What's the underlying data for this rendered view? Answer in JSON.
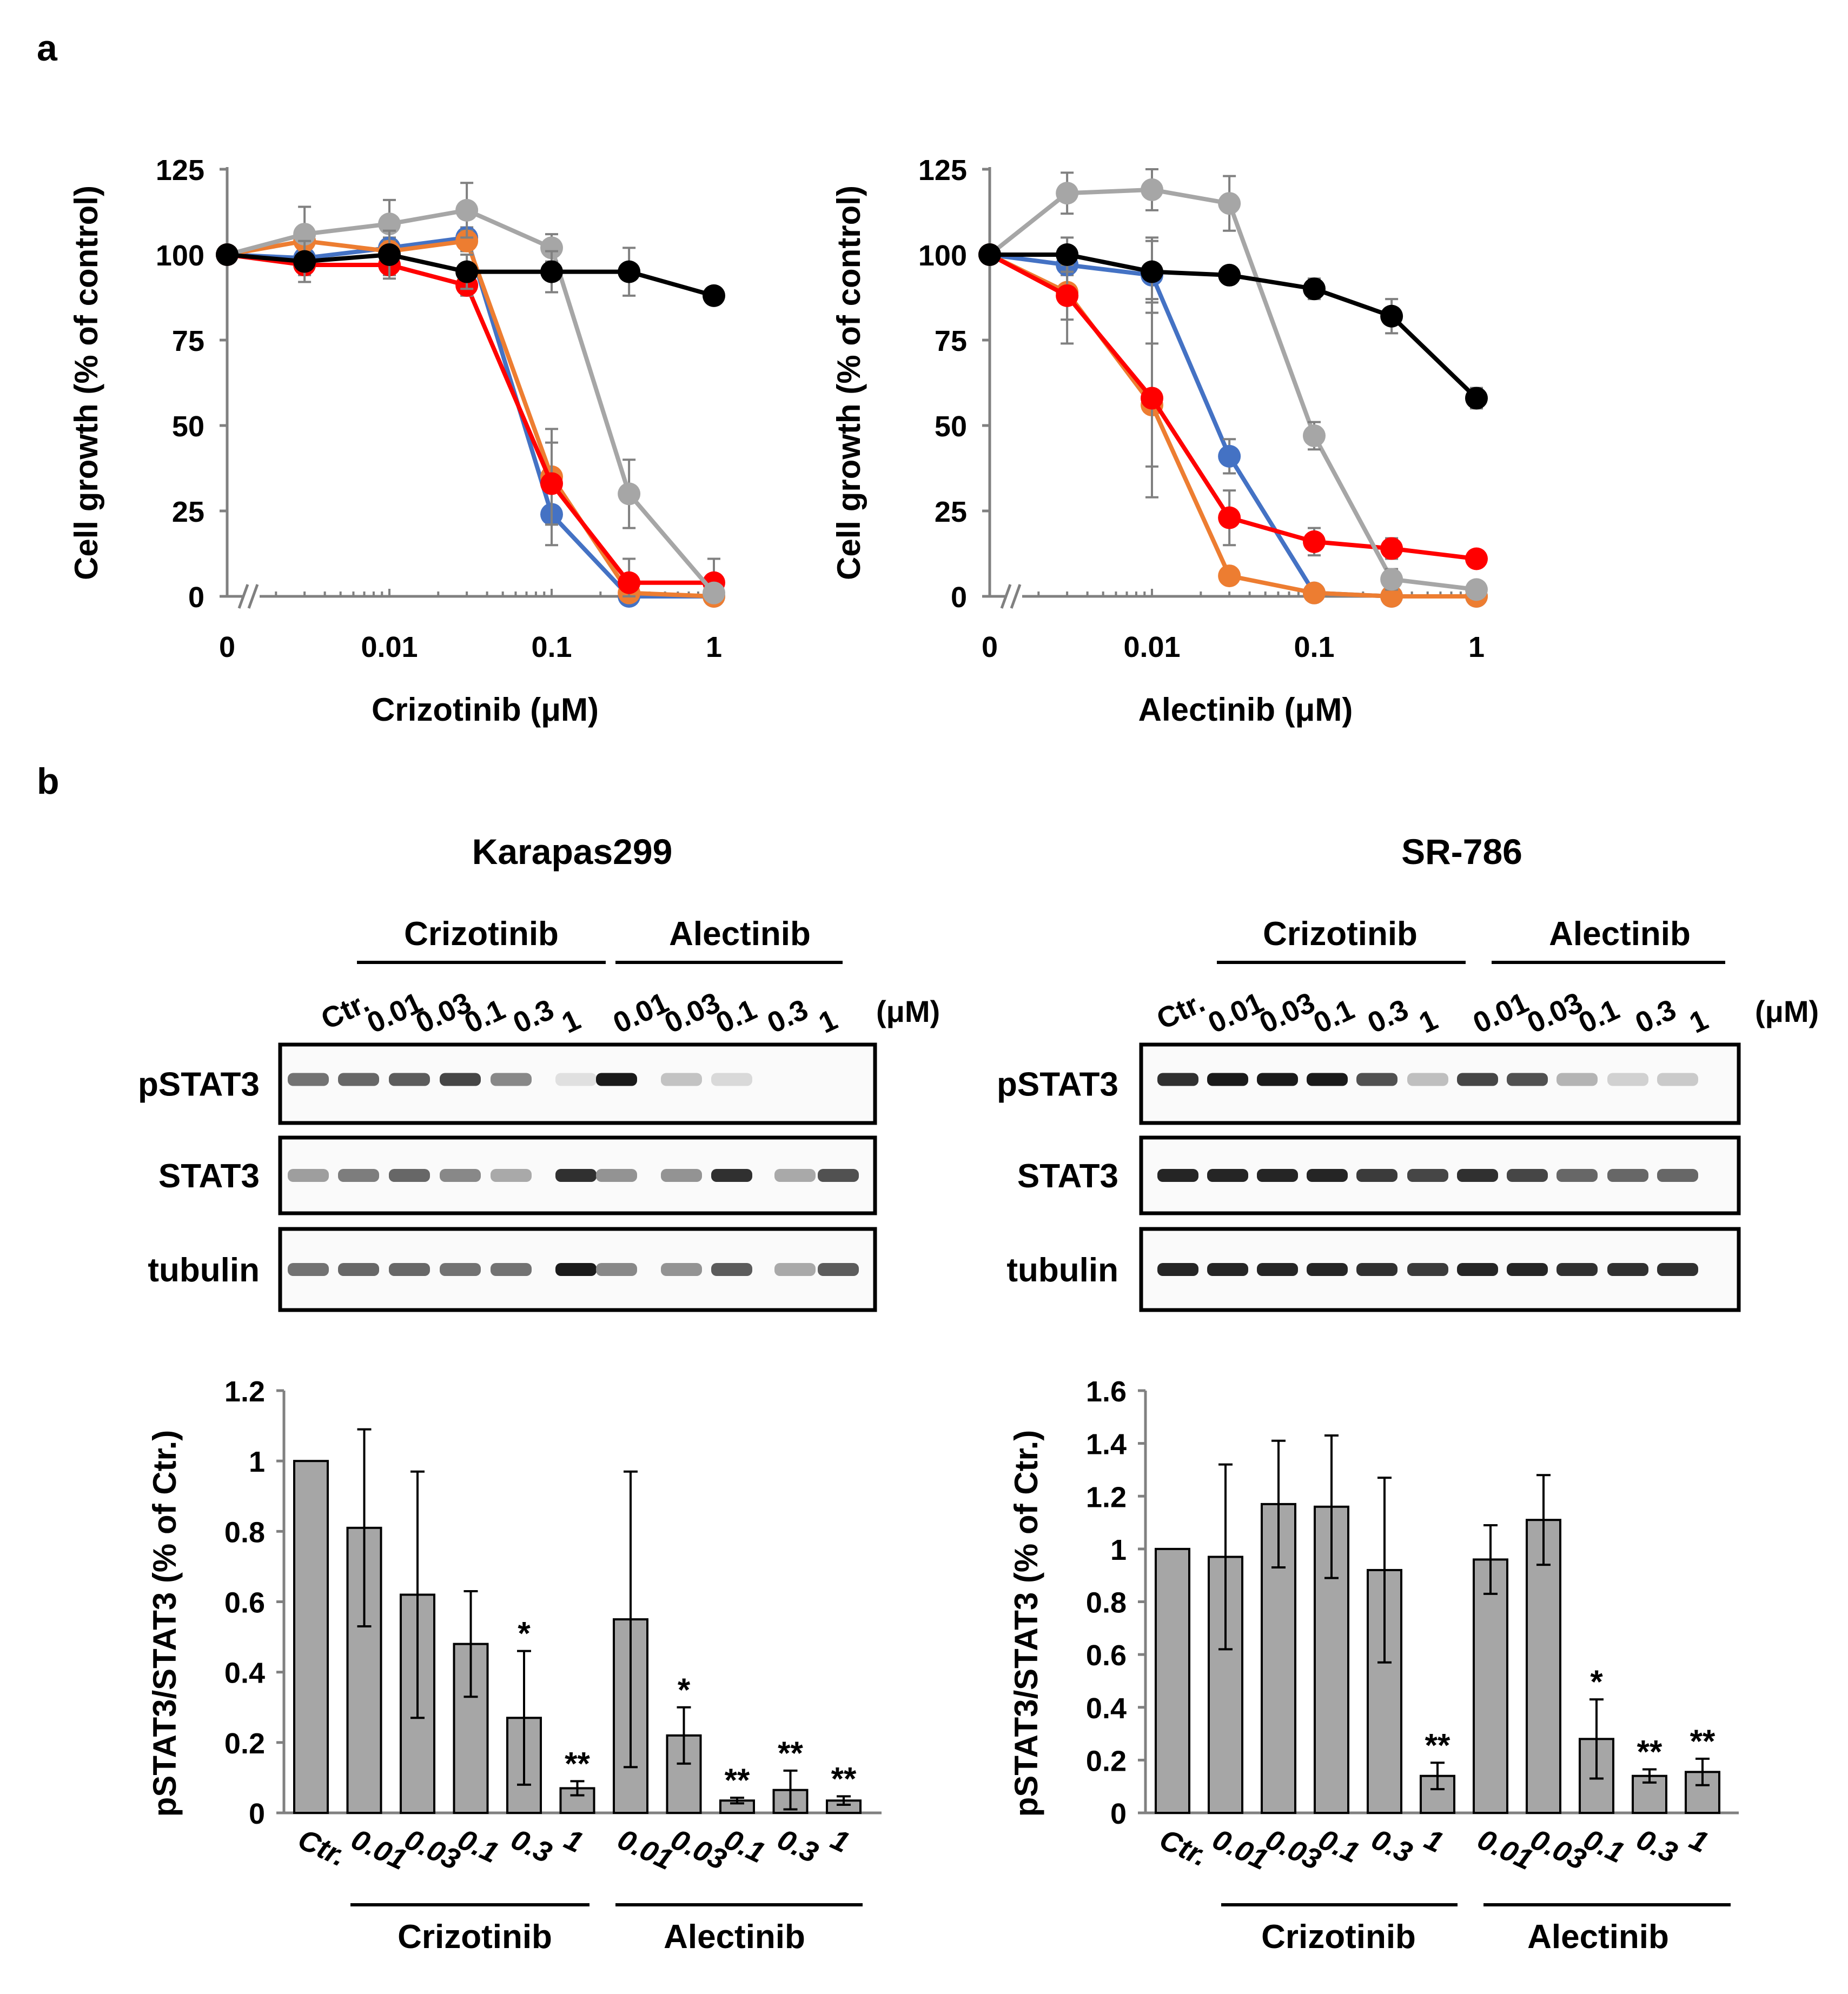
{
  "panel_labels": {
    "a": "a",
    "b": "b"
  },
  "colors": {
    "blue": "#4472c4",
    "orange": "#ed7d31",
    "red": "#ff0000",
    "gray": "#a6a6a6",
    "black": "#000000",
    "bar": "#a6a6a6",
    "errorbar": "#808080"
  },
  "chart_data": [
    {
      "type": "line",
      "id": "crizotinib-growth",
      "title": "",
      "xlabel": "Crizotinib (μM)",
      "ylabel": "Cell growth (% of control)",
      "x_scale": "log with broken axis at 0",
      "x_tick_labels": [
        "0",
        "0.01",
        "0.1",
        "1"
      ],
      "y_ticks": [
        0,
        25,
        50,
        75,
        100,
        125
      ],
      "ylim": [
        0,
        125
      ],
      "x": [
        0,
        0.003,
        0.01,
        0.03,
        0.1,
        0.3,
        1
      ],
      "series": [
        {
          "name": "blue",
          "color": "#4472c4",
          "values": [
            100,
            99,
            102,
            105,
            24,
            0,
            0
          ],
          "errors": [
            0,
            3,
            3,
            3,
            9,
            2,
            1
          ]
        },
        {
          "name": "orange",
          "color": "#ed7d31",
          "values": [
            100,
            104,
            101,
            104,
            35,
            1,
            0
          ],
          "errors": [
            0,
            3,
            3,
            3,
            14,
            2,
            1
          ]
        },
        {
          "name": "red",
          "color": "#ff0000",
          "values": [
            100,
            97,
            97,
            91,
            33,
            4,
            4
          ],
          "errors": [
            0,
            3,
            3,
            3,
            12,
            7,
            7
          ]
        },
        {
          "name": "gray",
          "color": "#a6a6a6",
          "values": [
            100,
            106,
            109,
            113,
            102,
            30,
            1
          ],
          "errors": [
            0,
            8,
            7,
            8,
            4,
            10,
            2
          ]
        },
        {
          "name": "black",
          "color": "#000000",
          "values": [
            100,
            98,
            100,
            95,
            95,
            95,
            88
          ],
          "errors": [
            0,
            6,
            7,
            5,
            6,
            7,
            2
          ]
        }
      ]
    },
    {
      "type": "line",
      "id": "alectinib-growth",
      "title": "",
      "xlabel": "Alectinib (μM)",
      "ylabel": "Cell growth (% of control)",
      "x_scale": "log with broken axis at 0",
      "x_tick_labels": [
        "0",
        "0.01",
        "0.1",
        "1"
      ],
      "y_ticks": [
        0,
        25,
        50,
        75,
        100,
        125
      ],
      "ylim": [
        0,
        125
      ],
      "x": [
        0,
        0.003,
        0.01,
        0.03,
        0.1,
        0.3,
        1
      ],
      "series": [
        {
          "name": "blue",
          "color": "#4472c4",
          "values": [
            100,
            97,
            94,
            41,
            1,
            0,
            0
          ],
          "errors": [
            0,
            3,
            11,
            5,
            1,
            1,
            1
          ]
        },
        {
          "name": "orange",
          "color": "#ed7d31",
          "values": [
            100,
            89,
            56,
            6,
            1,
            0,
            0
          ],
          "errors": [
            0,
            8,
            18,
            1,
            1,
            1,
            1
          ]
        },
        {
          "name": "red",
          "color": "#ff0000",
          "values": [
            100,
            88,
            58,
            23,
            16,
            14,
            11
          ],
          "errors": [
            0,
            14,
            29,
            8,
            4,
            3,
            2
          ]
        },
        {
          "name": "gray",
          "color": "#a6a6a6",
          "values": [
            100,
            118,
            119,
            115,
            47,
            5,
            2
          ],
          "errors": [
            0,
            6,
            6,
            8,
            4,
            3,
            1
          ]
        },
        {
          "name": "black",
          "color": "#000000",
          "values": [
            100,
            100,
            95,
            94,
            90,
            82,
            58
          ],
          "errors": [
            0,
            5,
            9,
            2,
            3,
            5,
            3
          ]
        }
      ]
    },
    {
      "type": "bar",
      "id": "karapas299-bars",
      "title": "",
      "ylabel": "pSTAT3/STAT3 (% of Ctr.)",
      "categories": [
        "Ctr.",
        "0.01",
        "0.03",
        "0.1",
        "0.3",
        "1",
        "0.01",
        "0.03",
        "0.1",
        "0.3",
        "1"
      ],
      "values": [
        1.0,
        0.81,
        0.62,
        0.48,
        0.27,
        0.07,
        0.55,
        0.22,
        0.035,
        0.065,
        0.035
      ],
      "errors": [
        0,
        0.28,
        0.35,
        0.15,
        0.19,
        0.02,
        0.42,
        0.08,
        0.008,
        0.055,
        0.012
      ],
      "significance": [
        "",
        "",
        "",
        "",
        "*",
        "**",
        "",
        "*",
        "**",
        "**",
        "**"
      ],
      "y_ticks": [
        "0",
        "0.2",
        "0.4",
        "0.6",
        "0.8",
        "1",
        "1.2"
      ],
      "ylim": [
        0,
        1.2
      ],
      "groups": [
        "Crizotinib",
        "Alectinib"
      ]
    },
    {
      "type": "bar",
      "id": "sr786-bars",
      "title": "",
      "ylabel": "pSTAT3/STAT3 (% of Ctr.)",
      "categories": [
        "Ctr.",
        "0.01",
        "0.03",
        "0.1",
        "0.3",
        "1",
        "0.01",
        "0.03",
        "0.1",
        "0.3",
        "1"
      ],
      "values": [
        1.0,
        0.97,
        1.17,
        1.16,
        0.92,
        0.14,
        0.96,
        1.11,
        0.28,
        0.14,
        0.155
      ],
      "errors": [
        0,
        0.35,
        0.24,
        0.27,
        0.35,
        0.05,
        0.13,
        0.17,
        0.15,
        0.025,
        0.05
      ],
      "significance": [
        "",
        "",
        "",
        "",
        "",
        "**",
        "",
        "",
        "*",
        "**",
        "**"
      ],
      "y_ticks": [
        "0",
        "0.2",
        "0.4",
        "0.6",
        "0.8",
        "1",
        "1.2",
        "1.4",
        "1.6"
      ],
      "ylim": [
        0,
        1.6
      ],
      "groups": [
        "Crizotinib",
        "Alectinib"
      ]
    }
  ],
  "blots": [
    {
      "id": "karapas299",
      "cell_line": "Karapas299",
      "groups": [
        "Crizotinib",
        "Alectinib"
      ],
      "unit": "(μM)",
      "lanes": [
        "Ctr.",
        "0.01",
        "0.03",
        "0.1",
        "0.3",
        "1",
        "0.01",
        "0.03",
        "0.1",
        "0.3",
        "1"
      ],
      "rows": [
        {
          "label": "pSTAT3",
          "intensity": [
            0.55,
            0.6,
            0.65,
            0.75,
            0.45,
            0.05,
            0.95,
            0.18,
            0.08,
            0,
            0
          ]
        },
        {
          "label": "STAT3",
          "intensity": [
            0.35,
            0.5,
            0.6,
            0.45,
            0.3,
            0.85,
            0.4,
            0.4,
            0.85,
            0.3,
            0.7
          ]
        },
        {
          "label": "tubulin",
          "intensity": [
            0.55,
            0.6,
            0.6,
            0.55,
            0.55,
            0.95,
            0.45,
            0.4,
            0.65,
            0.3,
            0.65
          ]
        }
      ]
    },
    {
      "id": "sr786",
      "cell_line": "SR-786",
      "groups": [
        "Crizotinib",
        "Alectinib"
      ],
      "unit": "(μM)",
      "lanes": [
        "Ctr.",
        "0.01",
        "0.03",
        "0.1",
        "0.3",
        "1",
        "0.01",
        "0.03",
        "0.1",
        "0.3",
        "1"
      ],
      "rows": [
        {
          "label": "pSTAT3",
          "intensity": [
            0.85,
            0.95,
            0.95,
            0.95,
            0.7,
            0.2,
            0.75,
            0.7,
            0.25,
            0.12,
            0.15
          ]
        },
        {
          "label": "STAT3",
          "intensity": [
            0.9,
            0.9,
            0.9,
            0.9,
            0.8,
            0.75,
            0.85,
            0.75,
            0.6,
            0.6,
            0.6
          ]
        },
        {
          "label": "tubulin",
          "intensity": [
            0.9,
            0.9,
            0.9,
            0.9,
            0.85,
            0.8,
            0.9,
            0.9,
            0.85,
            0.85,
            0.85
          ]
        }
      ]
    }
  ]
}
